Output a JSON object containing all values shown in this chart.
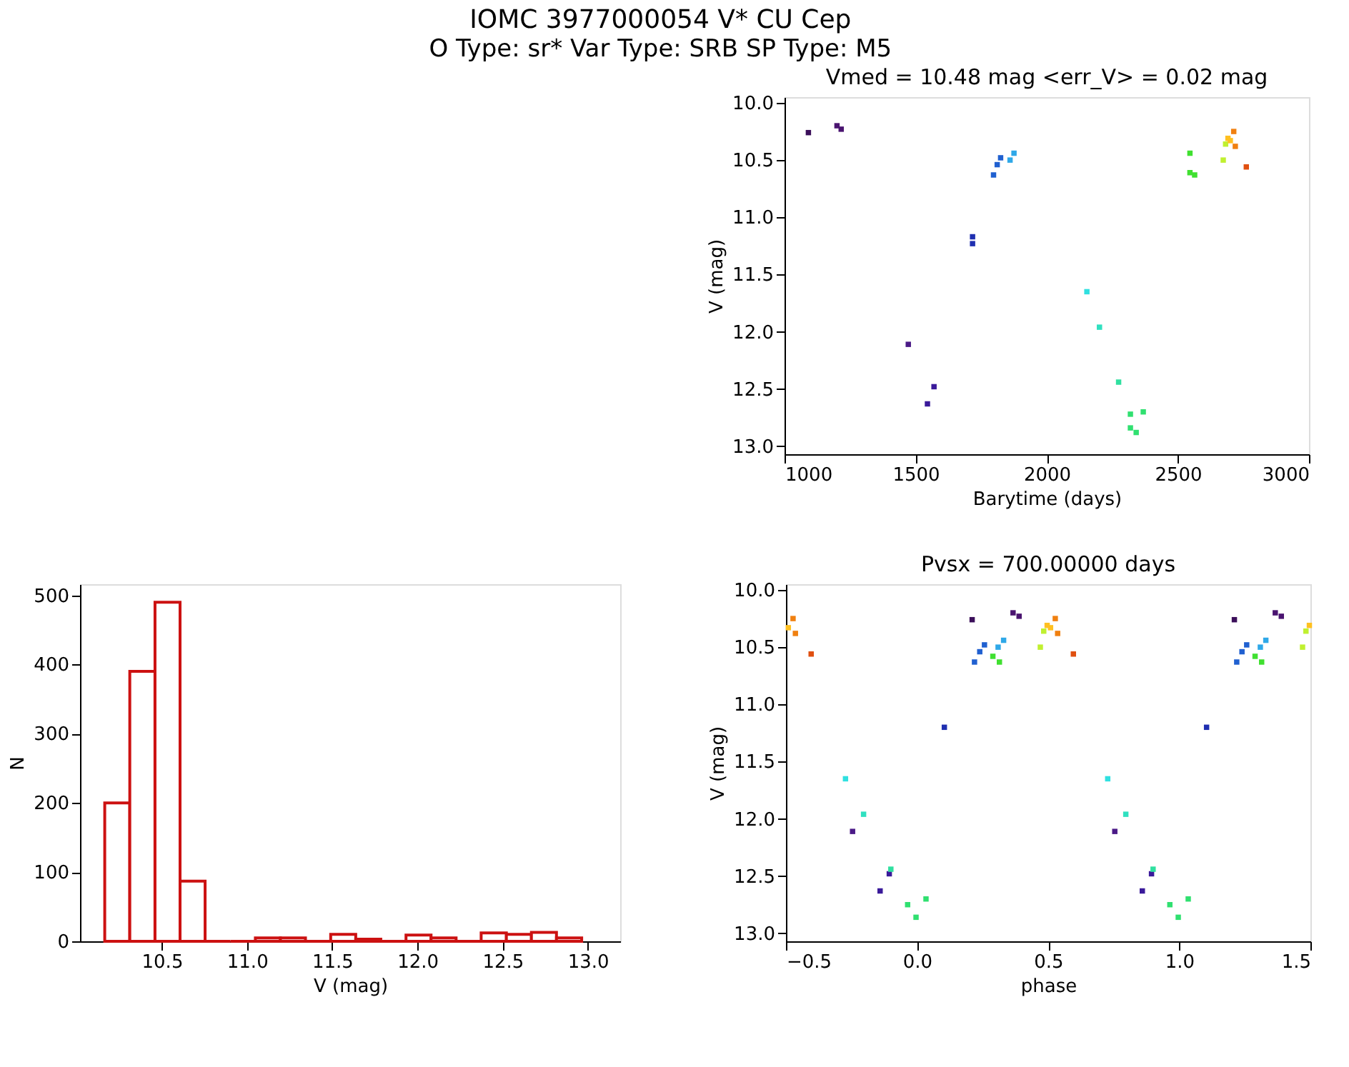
{
  "chart_data": [
    {
      "type": "other",
      "title": "IOMC 3977000054   V* CU Cep",
      "subtitle": "O Type: sr*  Var Type: SRB  SP Type: M5"
    },
    {
      "type": "scatter",
      "title": "Vmed = 10.48 mag <err_V> = 0.02 mag",
      "xlabel": "Barytime (days)",
      "ylabel": "V (mag)",
      "x": [
        1091,
        1200,
        1216,
        1472,
        1545,
        1570,
        1717,
        1717,
        1797,
        1811,
        1824,
        1860,
        1875,
        2153,
        2201,
        2274,
        2319,
        2319,
        2341,
        2368,
        2546,
        2546,
        2564,
        2673,
        2682,
        2691,
        2700,
        2713,
        2719,
        2761
      ],
      "values": [
        10.26,
        10.2,
        10.23,
        12.11,
        12.63,
        12.48,
        11.17,
        11.23,
        10.63,
        10.54,
        10.48,
        10.5,
        10.44,
        11.65,
        11.96,
        12.44,
        12.72,
        12.84,
        12.88,
        12.7,
        10.44,
        10.61,
        10.63,
        10.5,
        10.36,
        10.31,
        10.33,
        10.25,
        10.38,
        10.56
      ],
      "colors": [
        "#3b0f5a",
        "#4a1470",
        "#4a1470",
        "#4b1a87",
        "#3a1a9a",
        "#3a1a9a",
        "#1f2fb0",
        "#1f2fb0",
        "#2060d0",
        "#2060d0",
        "#2060d0",
        "#2fa8e8",
        "#2fa8e8",
        "#30e0e0",
        "#30e0c0",
        "#30e0a0",
        "#30e070",
        "#30e070",
        "#30e070",
        "#30e070",
        "#40e030",
        "#40e030",
        "#40e030",
        "#c0f030",
        "#c0f030",
        "#ffc020",
        "#ffc020",
        "#f08010",
        "#f08010",
        "#e05010"
      ],
      "marker": "square",
      "grid": false,
      "xlim": [
        1000,
        3000
      ],
      "xticks": [
        1000,
        1500,
        2000,
        2500,
        3000
      ],
      "ylim": [
        13.07,
        9.95
      ],
      "yticks": [
        {
          "value": 10,
          "label": "10.0"
        },
        {
          "value": 10.5,
          "label": "10.5"
        },
        {
          "value": 11,
          "label": "11.0"
        },
        {
          "value": 11.5,
          "label": "11.5"
        },
        {
          "value": 12,
          "label": "12.0"
        },
        {
          "value": 12.5,
          "label": "12.5"
        },
        {
          "value": 13,
          "label": "13.0"
        }
      ]
    },
    {
      "type": "histogram",
      "xlabel": "V (mag)",
      "ylabel": "N",
      "color": "#cc1111",
      "bins": [
        10.165,
        10.312,
        10.46,
        10.607,
        10.754,
        10.902,
        11.049,
        11.196,
        11.343,
        11.491,
        11.638,
        11.785,
        11.933,
        12.08,
        12.227,
        12.374,
        12.522,
        12.669,
        12.816,
        12.964
      ],
      "values": [
        200,
        390,
        490,
        87,
        0,
        0,
        5,
        5,
        0,
        10,
        3,
        0,
        9,
        5,
        0,
        12,
        10,
        13,
        5
      ],
      "grid": false,
      "xlim": [
        10.02,
        13.19
      ],
      "xticks": [
        {
          "value": 10.5,
          "label": "10.5"
        },
        {
          "value": 11,
          "label": "11.0"
        },
        {
          "value": 11.5,
          "label": "11.5"
        },
        {
          "value": 12,
          "label": "12.0"
        },
        {
          "value": 12.5,
          "label": "12.5"
        },
        {
          "value": 13,
          "label": "13.0"
        }
      ],
      "ylim": [
        0,
        516
      ],
      "yticks": [
        0,
        100,
        200,
        300,
        400,
        500
      ]
    },
    {
      "type": "scatter",
      "title": "Pvsx = 700.00000 days",
      "xlabel": "phase",
      "ylabel": "V (mag)",
      "x": [
        0.21,
        1.21,
        0.366,
        1.366,
        0.389,
        1.389,
        -0.246,
        0.754,
        -0.141,
        0.859,
        -0.106,
        0.894,
        0.104,
        1.104,
        0.219,
        1.219,
        0.239,
        1.239,
        0.257,
        1.257,
        0.309,
        1.309,
        0.33,
        1.33,
        -0.273,
        0.727,
        -0.204,
        0.796,
        -0.1,
        0.9,
        -0.036,
        0.964,
        -0.004,
        0.996,
        0.034,
        1.034,
        0.289,
        1.289,
        0.314,
        1.314,
        0.47,
        1.47,
        0.483,
        1.483,
        0.496,
        1.496,
        -0.491,
        0.509,
        -0.473,
        0.527,
        -0.464,
        0.536,
        -0.404,
        0.596
      ],
      "values": [
        10.26,
        10.26,
        10.2,
        10.2,
        10.23,
        10.23,
        12.11,
        12.11,
        12.63,
        12.63,
        12.48,
        12.48,
        11.2,
        11.2,
        10.63,
        10.63,
        10.54,
        10.54,
        10.48,
        10.48,
        10.5,
        10.5,
        10.44,
        10.44,
        11.65,
        11.65,
        11.96,
        11.96,
        12.44,
        12.44,
        12.75,
        12.75,
        12.86,
        12.86,
        12.7,
        12.7,
        10.58,
        10.58,
        10.63,
        10.63,
        10.5,
        10.5,
        10.36,
        10.36,
        10.31,
        10.31,
        10.33,
        10.33,
        10.25,
        10.25,
        10.38,
        10.38,
        10.56,
        10.56
      ],
      "colors": [
        "#3b0f5a",
        "#3b0f5a",
        "#4a1470",
        "#4a1470",
        "#4a1470",
        "#4a1470",
        "#4b1a87",
        "#4b1a87",
        "#3a1a9a",
        "#3a1a9a",
        "#3a1a9a",
        "#3a1a9a",
        "#1f2fb0",
        "#1f2fb0",
        "#2060d0",
        "#2060d0",
        "#2060d0",
        "#2060d0",
        "#2060d0",
        "#2060d0",
        "#2fa8e8",
        "#2fa8e8",
        "#2fa8e8",
        "#2fa8e8",
        "#30e0e0",
        "#30e0e0",
        "#30e0c0",
        "#30e0c0",
        "#30e0a0",
        "#30e0a0",
        "#30e070",
        "#30e070",
        "#30e070",
        "#30e070",
        "#30e070",
        "#30e070",
        "#40e030",
        "#40e030",
        "#40e030",
        "#40e030",
        "#c0f030",
        "#c0f030",
        "#c0f030",
        "#c0f030",
        "#ffc020",
        "#ffc020",
        "#ffc020",
        "#ffc020",
        "#f08010",
        "#f08010",
        "#f08010",
        "#f08010",
        "#e05010",
        "#e05010"
      ],
      "marker": "square",
      "grid": false,
      "xlim": [
        -0.5,
        1.5
      ],
      "xticks": [
        {
          "value": -0.5,
          "label": "−0.5"
        },
        {
          "value": 0,
          "label": "0.0"
        },
        {
          "value": 0.5,
          "label": "0.5"
        },
        {
          "value": 1,
          "label": "1.0"
        },
        {
          "value": 1.5,
          "label": "1.5"
        }
      ],
      "ylim": [
        13.07,
        9.95
      ],
      "yticks": [
        {
          "value": 10,
          "label": "10.0"
        },
        {
          "value": 10.5,
          "label": "10.5"
        },
        {
          "value": 11,
          "label": "11.0"
        },
        {
          "value": 11.5,
          "label": "11.5"
        },
        {
          "value": 12,
          "label": "12.0"
        },
        {
          "value": 12.5,
          "label": "12.5"
        },
        {
          "value": 13,
          "label": "13.0"
        }
      ]
    }
  ]
}
